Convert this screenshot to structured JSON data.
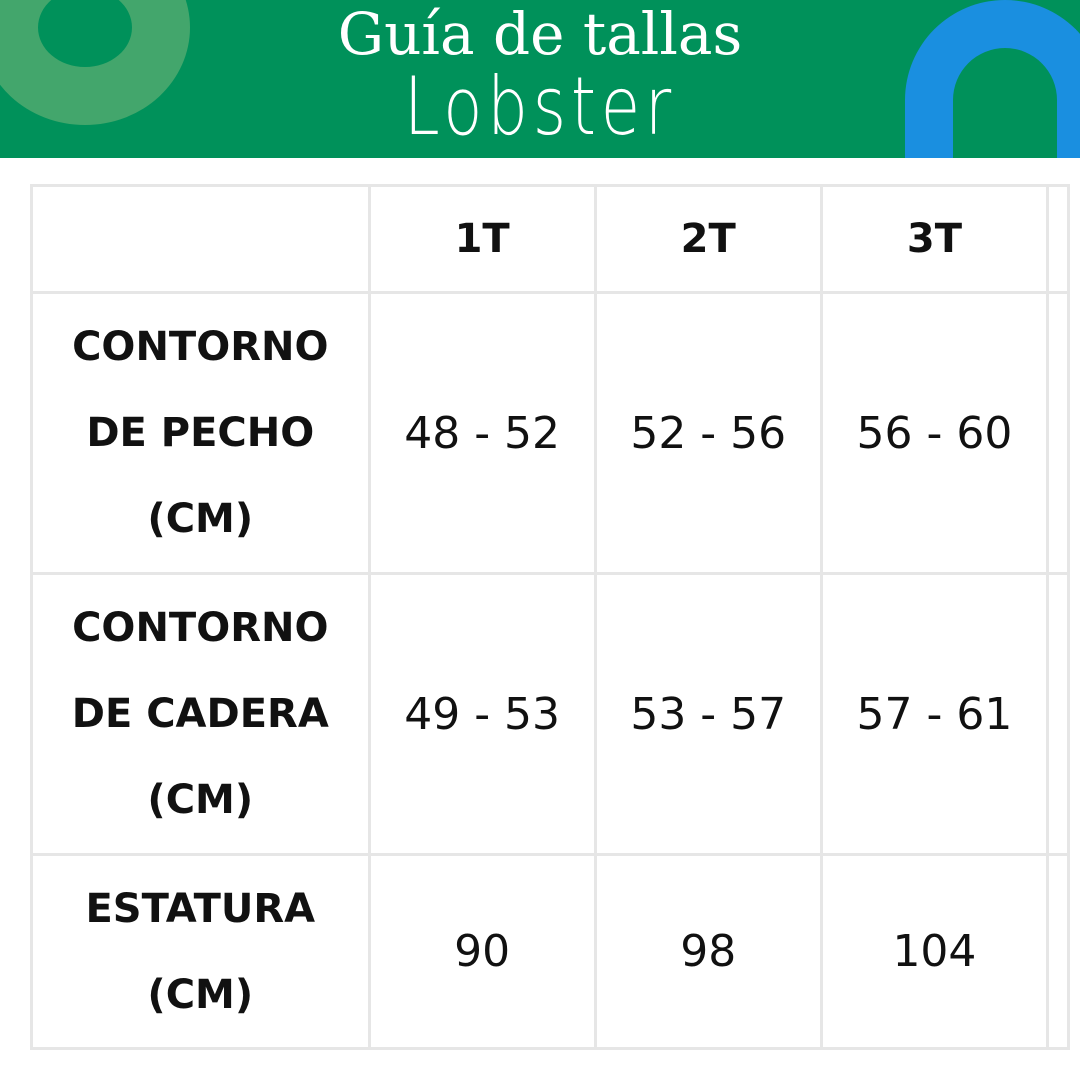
{
  "header": {
    "title": "Guía de tallas",
    "brand": "Lobster",
    "colors": {
      "background": "#00915a",
      "ring": "#4aa86e",
      "arch": "#1a8fe0"
    }
  },
  "table": {
    "columns": [
      "",
      "1T",
      "2T",
      "3T"
    ],
    "rows": [
      {
        "label": [
          "CONTORNO",
          "DE PECHO",
          "(CM)"
        ],
        "values": [
          "48 - 52",
          "52 - 56",
          "56 - 60"
        ]
      },
      {
        "label": [
          "CONTORNO",
          "DE CADERA",
          "(CM)"
        ],
        "values": [
          "49 - 53",
          "53 - 57",
          "57 - 61"
        ]
      },
      {
        "label": [
          "ESTATURA",
          "(CM)"
        ],
        "values": [
          "90",
          "98",
          "104"
        ]
      }
    ]
  }
}
